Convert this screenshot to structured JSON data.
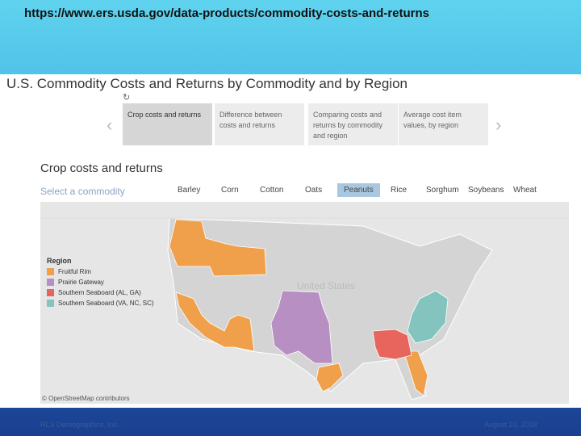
{
  "header": {
    "url": "https://www.ers.usda.gov/data-products/commodity-costs-and-returns"
  },
  "page": {
    "title": "U.S. Commodity Costs and Returns by Commodity and by Region",
    "tabs": [
      "Crop costs and returns",
      "Difference between costs and returns",
      "Comparing costs and returns by commodity and region",
      "Average cost item values, by region"
    ],
    "section_title": "Crop costs and returns",
    "selector_label": "Select a commodity",
    "commodities": [
      {
        "label": "Barley"
      },
      {
        "label": "Corn"
      },
      {
        "label": "Cotton"
      },
      {
        "label": "Oats"
      },
      {
        "label": "Peanuts",
        "selected": true
      },
      {
        "label": "Rice"
      },
      {
        "label": "Sorghum"
      },
      {
        "label": "Soybeans"
      },
      {
        "label": "Wheat"
      }
    ]
  },
  "map": {
    "legend_title": "Region",
    "regions": [
      {
        "label": "Fruitful Rim",
        "color": "#f0a04b"
      },
      {
        "label": "Prairie Gateway",
        "color": "#b88fc2"
      },
      {
        "label": "Southern Seaboard (AL, GA)",
        "color": "#e8655d"
      },
      {
        "label": "Southern Seaboard (VA, NC, SC)",
        "color": "#83c5be"
      }
    ],
    "country_label": "United States",
    "attribution": "© OpenStreetMap contributors"
  },
  "footer": {
    "left": "RLS Demographics, Inc.",
    "right": "August 23, 2018"
  }
}
